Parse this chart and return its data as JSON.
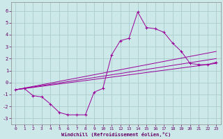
{
  "xlabel": "Windchill (Refroidissement éolien,°C)",
  "bg_color": "#cce8e8",
  "grid_color": "#aacccc",
  "line_color": "#990099",
  "xlim": [
    -0.5,
    23.5
  ],
  "ylim": [
    -3.5,
    6.7
  ],
  "xticks": [
    0,
    1,
    2,
    3,
    4,
    5,
    6,
    7,
    8,
    9,
    10,
    11,
    12,
    13,
    14,
    15,
    16,
    17,
    18,
    19,
    20,
    21,
    22,
    23
  ],
  "yticks": [
    -3,
    -2,
    -1,
    0,
    1,
    2,
    3,
    4,
    5,
    6
  ],
  "main_series": {
    "x": [
      0,
      1,
      2,
      3,
      4,
      5,
      6,
      7,
      8,
      9,
      10,
      11,
      12,
      13,
      14,
      15,
      16,
      17,
      18,
      19,
      20,
      21,
      22,
      23
    ],
    "y": [
      -0.6,
      -0.5,
      -1.1,
      -1.2,
      -1.8,
      -2.5,
      -2.7,
      -2.7,
      -2.7,
      -0.8,
      -0.5,
      2.3,
      3.5,
      3.7,
      5.9,
      4.6,
      4.5,
      4.2,
      3.3,
      2.6,
      1.6,
      1.5,
      1.5,
      1.7
    ]
  },
  "trend_lines": [
    {
      "x": [
        0,
        23
      ],
      "y": [
        -0.6,
        1.6
      ]
    },
    {
      "x": [
        0,
        23
      ],
      "y": [
        -0.6,
        2.0
      ]
    },
    {
      "x": [
        0,
        23
      ],
      "y": [
        -0.6,
        2.6
      ]
    }
  ]
}
